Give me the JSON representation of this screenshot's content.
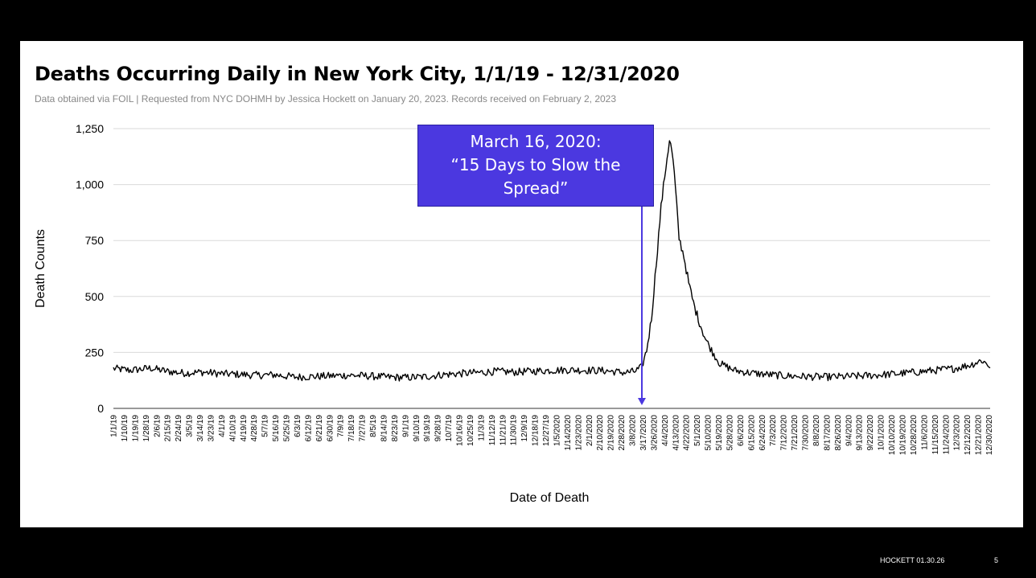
{
  "slide": {
    "title": "Deaths Occurring Daily in New York City, 1/1/19 - 12/31/2020",
    "subtitle": "Data obtained via FOIL | Requested from NYC DOHMH by Jessica Hockett on January 20, 2023. Records received on February 2, 2023",
    "footer": "HOCKETT 01.30.26",
    "page_number": "5"
  },
  "annotation": {
    "text": "March 16, 2020:\n“15 Days to Slow the Spread”",
    "date": "3/16/2020",
    "color": "#4b38e0"
  },
  "chart_data": {
    "type": "line",
    "title": "Deaths Occurring Daily in New York City, 1/1/19 - 12/31/2020",
    "xlabel": "Date of Death",
    "ylabel": "Death Counts",
    "ylim": [
      0,
      1250
    ],
    "yticks": [
      "0",
      "250",
      "500",
      "750",
      "1,000",
      "1,250"
    ],
    "grid": true,
    "line_color": "#000000",
    "x_start": "2019-01-01",
    "x_end": "2020-12-31",
    "xtick_labels": [
      "1/1/19",
      "1/10/19",
      "1/19/19",
      "1/28/19",
      "2/6/19",
      "2/15/19",
      "2/24/19",
      "3/5/19",
      "3/14/19",
      "3/23/19",
      "4/1/19",
      "4/10/19",
      "4/19/19",
      "4/28/19",
      "5/7/19",
      "5/16/19",
      "5/25/19",
      "6/3/19",
      "6/12/19",
      "6/21/19",
      "6/30/19",
      "7/9/19",
      "7/18/19",
      "7/27/19",
      "8/5/19",
      "8/14/19",
      "8/23/19",
      "9/1/19",
      "9/10/19",
      "9/19/19",
      "9/28/19",
      "10/7/19",
      "10/16/19",
      "10/25/19",
      "11/3/19",
      "11/12/19",
      "11/21/19",
      "11/30/19",
      "12/9/19",
      "12/18/19",
      "12/27/19",
      "1/5/2020",
      "1/14/2020",
      "1/23/2020",
      "2/1/2020",
      "2/10/2020",
      "2/19/2020",
      "2/28/2020",
      "3/8/2020",
      "3/17/2020",
      "3/26/2020",
      "4/4/2020",
      "4/13/2020",
      "4/22/2020",
      "5/1/2020",
      "5/10/2020",
      "5/19/2020",
      "5/28/2020",
      "6/6/2020",
      "6/15/2020",
      "6/24/2020",
      "7/3/2020",
      "7/12/2020",
      "7/21/2020",
      "7/30/2020",
      "8/8/2020",
      "8/17/2020",
      "8/26/2020",
      "9/4/2020",
      "9/13/2020",
      "9/22/2020",
      "10/1/2020",
      "10/10/2020",
      "10/19/2020",
      "10/28/2020",
      "11/6/2020",
      "11/15/2020",
      "11/24/2020",
      "12/3/2020",
      "12/12/2020",
      "12/21/2020",
      "12/30/2020"
    ],
    "series": [
      {
        "name": "",
        "points": [
          [
            "2019-01-01",
            178
          ],
          [
            "2019-01-15",
            170
          ],
          [
            "2019-02-01",
            180
          ],
          [
            "2019-02-15",
            165
          ],
          [
            "2019-03-01",
            158
          ],
          [
            "2019-03-15",
            162
          ],
          [
            "2019-04-01",
            155
          ],
          [
            "2019-04-15",
            152
          ],
          [
            "2019-05-01",
            148
          ],
          [
            "2019-05-15",
            150
          ],
          [
            "2019-06-01",
            140
          ],
          [
            "2019-06-15",
            142
          ],
          [
            "2019-07-01",
            145
          ],
          [
            "2019-07-15",
            148
          ],
          [
            "2019-08-01",
            145
          ],
          [
            "2019-08-15",
            140
          ],
          [
            "2019-09-01",
            138
          ],
          [
            "2019-09-15",
            140
          ],
          [
            "2019-10-01",
            150
          ],
          [
            "2019-10-15",
            155
          ],
          [
            "2019-11-01",
            160
          ],
          [
            "2019-11-15",
            165
          ],
          [
            "2019-12-01",
            162
          ],
          [
            "2019-12-15",
            166
          ],
          [
            "2020-01-01",
            170
          ],
          [
            "2020-01-15",
            172
          ],
          [
            "2020-02-01",
            170
          ],
          [
            "2020-02-15",
            168
          ],
          [
            "2020-03-01",
            160
          ],
          [
            "2020-03-10",
            165
          ],
          [
            "2020-03-16",
            185
          ],
          [
            "2020-03-20",
            260
          ],
          [
            "2020-03-24",
            400
          ],
          [
            "2020-03-28",
            650
          ],
          [
            "2020-04-01",
            900
          ],
          [
            "2020-04-05",
            1080
          ],
          [
            "2020-04-08",
            1200
          ],
          [
            "2020-04-10",
            1150
          ],
          [
            "2020-04-12",
            1050
          ],
          [
            "2020-04-16",
            760
          ],
          [
            "2020-04-20",
            680
          ],
          [
            "2020-04-24",
            560
          ],
          [
            "2020-04-28",
            470
          ],
          [
            "2020-05-02",
            400
          ],
          [
            "2020-05-08",
            310
          ],
          [
            "2020-05-14",
            250
          ],
          [
            "2020-05-20",
            200
          ],
          [
            "2020-06-01",
            170
          ],
          [
            "2020-06-15",
            158
          ],
          [
            "2020-07-01",
            150
          ],
          [
            "2020-07-15",
            145
          ],
          [
            "2020-08-01",
            142
          ],
          [
            "2020-08-15",
            140
          ],
          [
            "2020-09-01",
            142
          ],
          [
            "2020-09-15",
            145
          ],
          [
            "2020-10-01",
            150
          ],
          [
            "2020-10-15",
            155
          ],
          [
            "2020-11-01",
            163
          ],
          [
            "2020-11-15",
            170
          ],
          [
            "2020-12-01",
            178
          ],
          [
            "2020-12-15",
            195
          ],
          [
            "2020-12-24",
            215
          ],
          [
            "2020-12-31",
            188
          ]
        ]
      }
    ]
  }
}
